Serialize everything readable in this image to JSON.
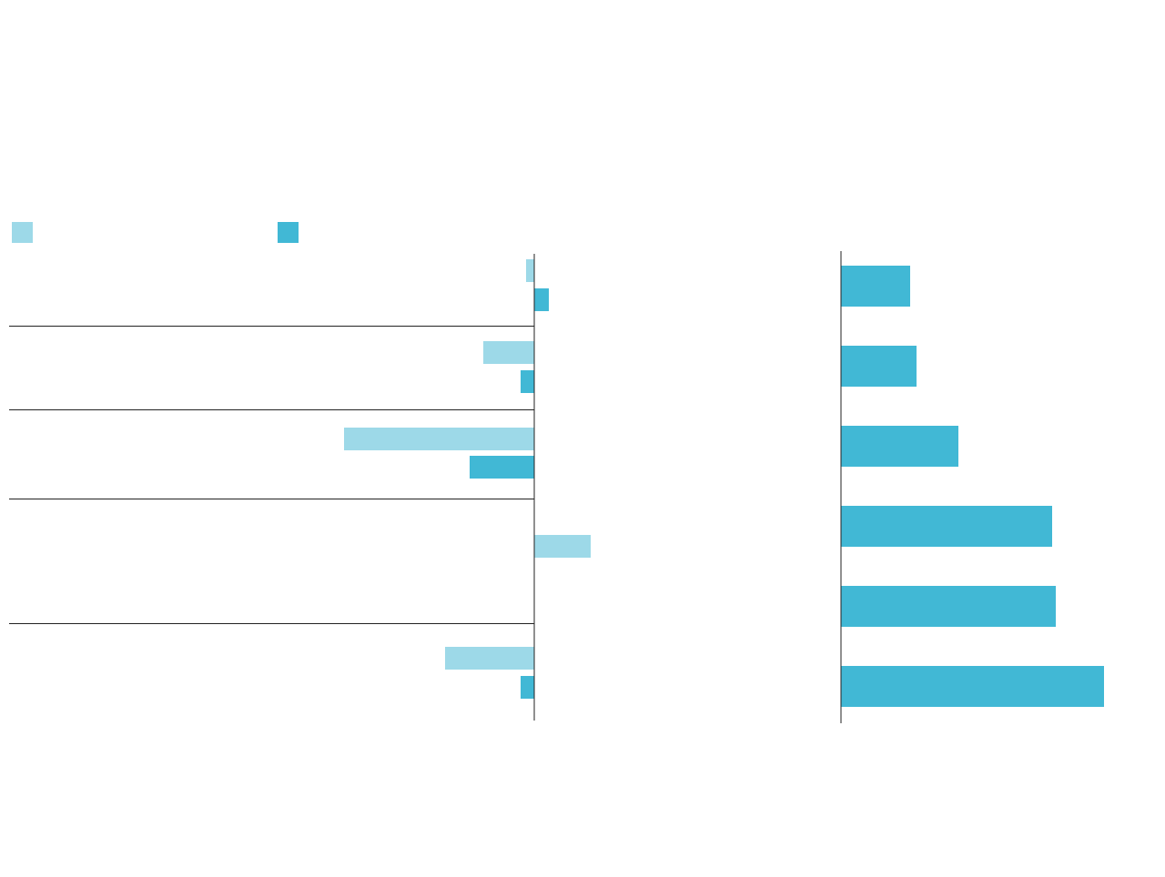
{
  "chart_data": [
    {
      "type": "diverging-bar",
      "categories": [
        null,
        null,
        null,
        null,
        null
      ],
      "series": [
        {
          "color": "#9dd9e8",
          "values": [
            -0.9,
            -5.6,
            -20.9,
            6.2,
            -9.8
          ]
        },
        {
          "color": "#41b8d5",
          "values": [
            1.6,
            -1.5,
            -7.1,
            null,
            -1.5
          ]
        }
      ],
      "xlim": [
        -57.7,
        30
      ]
    },
    {
      "type": "hbar",
      "categories": [
        null,
        null,
        null,
        null,
        null,
        null
      ],
      "values": [
        7.6,
        8.3,
        12.9,
        23.2,
        23.6,
        28.9
      ],
      "color": "#41b8d5",
      "xlim": [
        0,
        35
      ]
    }
  ]
}
